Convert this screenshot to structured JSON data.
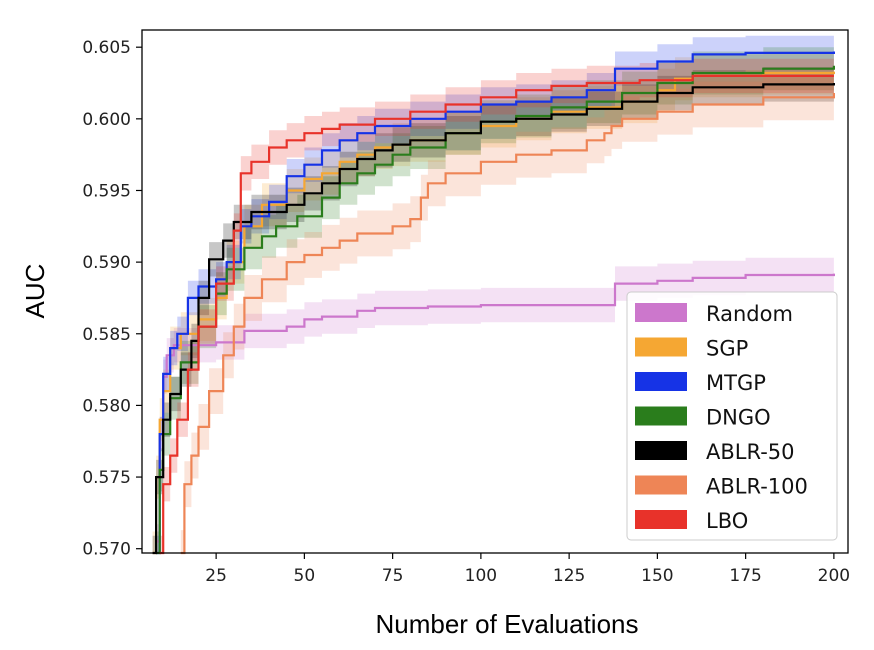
{
  "chart_data": {
    "type": "line",
    "title": "",
    "xlabel": "Number of Evaluations",
    "ylabel": "AUC",
    "xlim": [
      4,
      204
    ],
    "ylim": [
      0.5697,
      0.6062
    ],
    "xticks": [
      25,
      50,
      75,
      100,
      125,
      150,
      175,
      200
    ],
    "yticks": [
      0.57,
      0.575,
      0.58,
      0.585,
      0.59,
      0.595,
      0.6,
      0.605
    ],
    "ytick_labels": [
      "0.570",
      "0.575",
      "0.580",
      "0.585",
      "0.590",
      "0.595",
      "0.600",
      "0.605"
    ],
    "xtick_labels": [
      "25",
      "50",
      "75",
      "100",
      "125",
      "150",
      "175",
      "200"
    ],
    "legend_position": "lower-right",
    "series": [
      {
        "name": "Random",
        "color": "#cc77cc",
        "band": 0.0012,
        "points": [
          [
            8,
            0.5705
          ],
          [
            9,
            0.578
          ],
          [
            10,
            0.582
          ],
          [
            11,
            0.5835
          ],
          [
            13,
            0.5842
          ],
          [
            25,
            0.5844
          ],
          [
            33,
            0.5852
          ],
          [
            45,
            0.5855
          ],
          [
            50,
            0.586
          ],
          [
            55,
            0.5862
          ],
          [
            65,
            0.5866
          ],
          [
            70,
            0.5868
          ],
          [
            85,
            0.5869
          ],
          [
            100,
            0.587
          ],
          [
            137,
            0.587
          ],
          [
            138,
            0.5885
          ],
          [
            150,
            0.5887
          ],
          [
            160,
            0.5889
          ],
          [
            175,
            0.5891
          ],
          [
            200,
            0.5892
          ]
        ]
      },
      {
        "name": "SGP",
        "color": "#f5a733",
        "band": 0.0015,
        "points": [
          [
            7,
            0.5697
          ],
          [
            8,
            0.575
          ],
          [
            9,
            0.579
          ],
          [
            10,
            0.581
          ],
          [
            12,
            0.584
          ],
          [
            15,
            0.585
          ],
          [
            20,
            0.586
          ],
          [
            25,
            0.5875
          ],
          [
            28,
            0.59
          ],
          [
            33,
            0.5925
          ],
          [
            38,
            0.594
          ],
          [
            45,
            0.595
          ],
          [
            50,
            0.5958
          ],
          [
            55,
            0.5962
          ],
          [
            60,
            0.597
          ],
          [
            65,
            0.5975
          ],
          [
            70,
            0.598
          ],
          [
            75,
            0.5982
          ],
          [
            80,
            0.5985
          ],
          [
            90,
            0.599
          ],
          [
            100,
            0.5995
          ],
          [
            110,
            0.6
          ],
          [
            120,
            0.6005
          ],
          [
            130,
            0.6008
          ],
          [
            140,
            0.6012
          ],
          [
            150,
            0.602
          ],
          [
            155,
            0.6028
          ],
          [
            160,
            0.603
          ],
          [
            180,
            0.6032
          ],
          [
            200,
            0.6033
          ]
        ]
      },
      {
        "name": "MTGP",
        "color": "#1633e6",
        "band": 0.0012,
        "points": [
          [
            8,
            0.5697
          ],
          [
            9,
            0.578
          ],
          [
            10,
            0.5822
          ],
          [
            12,
            0.584
          ],
          [
            14,
            0.585
          ],
          [
            17,
            0.5875
          ],
          [
            20,
            0.5883
          ],
          [
            25,
            0.5888
          ],
          [
            28,
            0.59
          ],
          [
            32,
            0.5925
          ],
          [
            35,
            0.5932
          ],
          [
            40,
            0.5942
          ],
          [
            45,
            0.596
          ],
          [
            50,
            0.5968
          ],
          [
            55,
            0.5978
          ],
          [
            60,
            0.5985
          ],
          [
            65,
            0.599
          ],
          [
            70,
            0.5995
          ],
          [
            80,
            0.6
          ],
          [
            90,
            0.6005
          ],
          [
            100,
            0.601
          ],
          [
            110,
            0.6012
          ],
          [
            120,
            0.6015
          ],
          [
            130,
            0.602
          ],
          [
            138,
            0.6035
          ],
          [
            150,
            0.604
          ],
          [
            160,
            0.6045
          ],
          [
            175,
            0.6046
          ],
          [
            200,
            0.6047
          ]
        ]
      },
      {
        "name": "DNGO",
        "color": "#2a7d1c",
        "band": 0.0015,
        "points": [
          [
            8,
            0.5697
          ],
          [
            9,
            0.5755
          ],
          [
            10,
            0.578
          ],
          [
            12,
            0.5805
          ],
          [
            15,
            0.583
          ],
          [
            20,
            0.5855
          ],
          [
            25,
            0.5878
          ],
          [
            28,
            0.5895
          ],
          [
            33,
            0.591
          ],
          [
            38,
            0.5918
          ],
          [
            42,
            0.5925
          ],
          [
            48,
            0.5932
          ],
          [
            55,
            0.5945
          ],
          [
            60,
            0.5955
          ],
          [
            65,
            0.5962
          ],
          [
            70,
            0.5968
          ],
          [
            75,
            0.5975
          ],
          [
            80,
            0.598
          ],
          [
            90,
            0.599
          ],
          [
            100,
            0.5998
          ],
          [
            110,
            0.6002
          ],
          [
            120,
            0.6008
          ],
          [
            130,
            0.6012
          ],
          [
            140,
            0.6018
          ],
          [
            150,
            0.6025
          ],
          [
            160,
            0.6032
          ],
          [
            180,
            0.6035
          ],
          [
            200,
            0.6037
          ]
        ]
      },
      {
        "name": "ABLR-50",
        "color": "#000000",
        "band": 0.0012,
        "points": [
          [
            7,
            0.5697
          ],
          [
            8,
            0.575
          ],
          [
            10,
            0.579
          ],
          [
            12,
            0.5808
          ],
          [
            15,
            0.5825
          ],
          [
            18,
            0.5845
          ],
          [
            20,
            0.5875
          ],
          [
            23,
            0.5902
          ],
          [
            27,
            0.5915
          ],
          [
            30,
            0.5928
          ],
          [
            35,
            0.5935
          ],
          [
            45,
            0.594
          ],
          [
            50,
            0.5948
          ],
          [
            55,
            0.5955
          ],
          [
            60,
            0.5965
          ],
          [
            65,
            0.5972
          ],
          [
            70,
            0.5978
          ],
          [
            75,
            0.5982
          ],
          [
            80,
            0.5985
          ],
          [
            90,
            0.599
          ],
          [
            100,
            0.5998
          ],
          [
            110,
            0.6
          ],
          [
            120,
            0.6003
          ],
          [
            130,
            0.6007
          ],
          [
            140,
            0.6012
          ],
          [
            150,
            0.6018
          ],
          [
            160,
            0.6022
          ],
          [
            180,
            0.6024
          ],
          [
            200,
            0.6025
          ]
        ]
      },
      {
        "name": "ABLR-100",
        "color": "#ee8556",
        "band": 0.0016,
        "points": [
          [
            15,
            0.5697
          ],
          [
            16,
            0.5745
          ],
          [
            18,
            0.5765
          ],
          [
            20,
            0.5785
          ],
          [
            23,
            0.581
          ],
          [
            27,
            0.5835
          ],
          [
            30,
            0.5855
          ],
          [
            33,
            0.5875
          ],
          [
            38,
            0.5888
          ],
          [
            45,
            0.59
          ],
          [
            50,
            0.5905
          ],
          [
            55,
            0.591
          ],
          [
            60,
            0.5915
          ],
          [
            65,
            0.592
          ],
          [
            75,
            0.5925
          ],
          [
            80,
            0.593
          ],
          [
            83,
            0.5945
          ],
          [
            85,
            0.5955
          ],
          [
            90,
            0.5962
          ],
          [
            100,
            0.597
          ],
          [
            110,
            0.5975
          ],
          [
            120,
            0.5978
          ],
          [
            130,
            0.5985
          ],
          [
            135,
            0.599
          ],
          [
            137,
            0.5995
          ],
          [
            140,
            0.6
          ],
          [
            150,
            0.6005
          ],
          [
            160,
            0.601
          ],
          [
            180,
            0.6015
          ],
          [
            200,
            0.6018
          ]
        ]
      },
      {
        "name": "LBO",
        "color": "#e8322a",
        "band": 0.0012,
        "points": [
          [
            9,
            0.5697
          ],
          [
            10,
            0.5745
          ],
          [
            12,
            0.5765
          ],
          [
            14,
            0.579
          ],
          [
            17,
            0.5825
          ],
          [
            20,
            0.5855
          ],
          [
            25,
            0.5885
          ],
          [
            30,
            0.5922
          ],
          [
            32,
            0.5962
          ],
          [
            35,
            0.597
          ],
          [
            40,
            0.598
          ],
          [
            45,
            0.5985
          ],
          [
            50,
            0.599
          ],
          [
            55,
            0.5993
          ],
          [
            60,
            0.5996
          ],
          [
            70,
            0.6
          ],
          [
            80,
            0.6005
          ],
          [
            90,
            0.601
          ],
          [
            100,
            0.6015
          ],
          [
            110,
            0.602
          ],
          [
            120,
            0.6023
          ],
          [
            130,
            0.6025
          ],
          [
            145,
            0.6027
          ],
          [
            160,
            0.603
          ],
          [
            200,
            0.603
          ]
        ]
      }
    ]
  }
}
